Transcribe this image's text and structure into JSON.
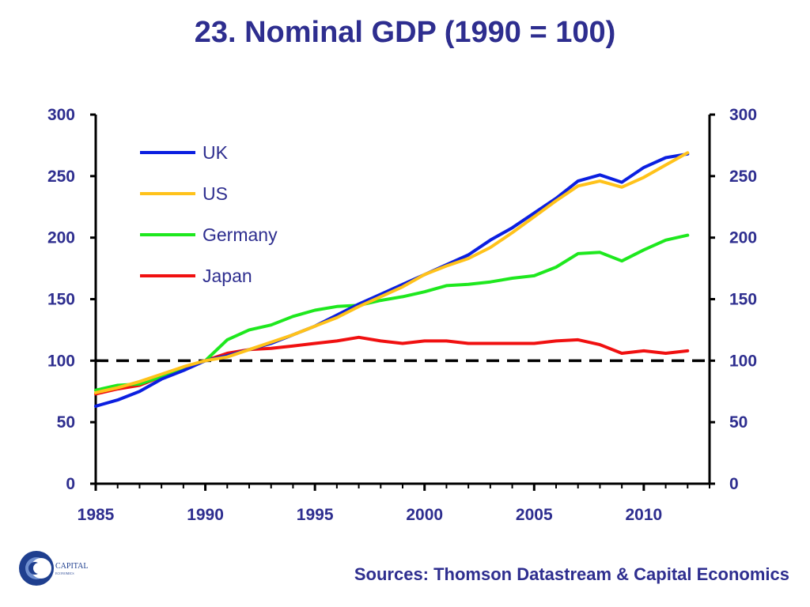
{
  "chart_data": {
    "type": "line",
    "title": "23. Nominal GDP (1990 = 100)",
    "xlabel": "",
    "ylabel": "",
    "xlim": [
      1985,
      2013
    ],
    "ylim": [
      0,
      300
    ],
    "x_ticks": [
      1985,
      1990,
      1995,
      2000,
      2005,
      2010
    ],
    "y_ticks": [
      0,
      50,
      100,
      150,
      200,
      250,
      300
    ],
    "y_axis": "both",
    "reference_line": {
      "y": 100,
      "style": "dashed"
    },
    "legend_position": "top-left",
    "x": [
      1985,
      1986,
      1987,
      1988,
      1989,
      1990,
      1991,
      1992,
      1993,
      1994,
      1995,
      1996,
      1997,
      1998,
      1999,
      2000,
      2001,
      2002,
      2003,
      2004,
      2005,
      2006,
      2007,
      2008,
      2009,
      2010,
      2011,
      2012
    ],
    "series": [
      {
        "name": "UK",
        "color": "#0b1fe0",
        "values": [
          63,
          68,
          75,
          85,
          92,
          100,
          104,
          109,
          114,
          121,
          128,
          137,
          146,
          154,
          162,
          170,
          178,
          186,
          198,
          208,
          220,
          232,
          246,
          251,
          245,
          257,
          265,
          268
        ]
      },
      {
        "name": "US",
        "color": "#ffc21a",
        "values": [
          74,
          78,
          83,
          89,
          95,
          100,
          103,
          109,
          115,
          121,
          128,
          135,
          144,
          152,
          160,
          170,
          177,
          183,
          192,
          204,
          217,
          230,
          242,
          246,
          241,
          249,
          259,
          269
        ]
      },
      {
        "name": "Germany",
        "color": "#1ee81e",
        "values": [
          76,
          80,
          81,
          87,
          93,
          100,
          117,
          125,
          129,
          136,
          141,
          144,
          145,
          149,
          152,
          156,
          161,
          162,
          164,
          167,
          169,
          176,
          187,
          188,
          181,
          190,
          198,
          202
        ]
      },
      {
        "name": "Japan",
        "color": "#f01010",
        "values": [
          73,
          77,
          80,
          87,
          94,
          100,
          106,
          109,
          110,
          112,
          114,
          116,
          119,
          116,
          114,
          116,
          116,
          114,
          114,
          114,
          114,
          116,
          117,
          113,
          106,
          108,
          106,
          108
        ]
      }
    ]
  },
  "footer": {
    "sources": "Sources: Thomson Datastream & Capital Economics",
    "logo_text": "CAPITAL",
    "logo_subtext": "ECONOMICS"
  },
  "colors": {
    "text": "#2e2e8f"
  }
}
